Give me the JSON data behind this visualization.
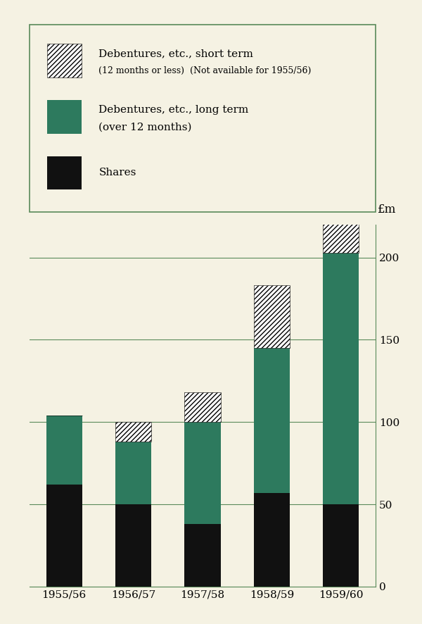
{
  "categories": [
    "1955/56",
    "1956/57",
    "1957/58",
    "1958/59",
    "1959/60"
  ],
  "shares": [
    62,
    50,
    38,
    57,
    50
  ],
  "long_term": [
    42,
    38,
    62,
    88,
    153
  ],
  "short_term": [
    0,
    12,
    18,
    38,
    28
  ],
  "bar_color_shares": "#111111",
  "bar_color_long": "#2d7a5e",
  "background_color": "#f5f2e3",
  "grid_color": "#5a8a5a",
  "ylim": [
    0,
    220
  ],
  "yticks": [
    0,
    50,
    100,
    150,
    200
  ],
  "bar_width": 0.52,
  "legend_label_short": "Debentures, etc., short term",
  "legend_label_short2": "(12 months or less)",
  "legend_label_short3": "(Not available for 1955/56)",
  "legend_label_long": "Debentures, etc., long term",
  "legend_label_long2": "(over 12 months)",
  "legend_label_shares": "Shares"
}
